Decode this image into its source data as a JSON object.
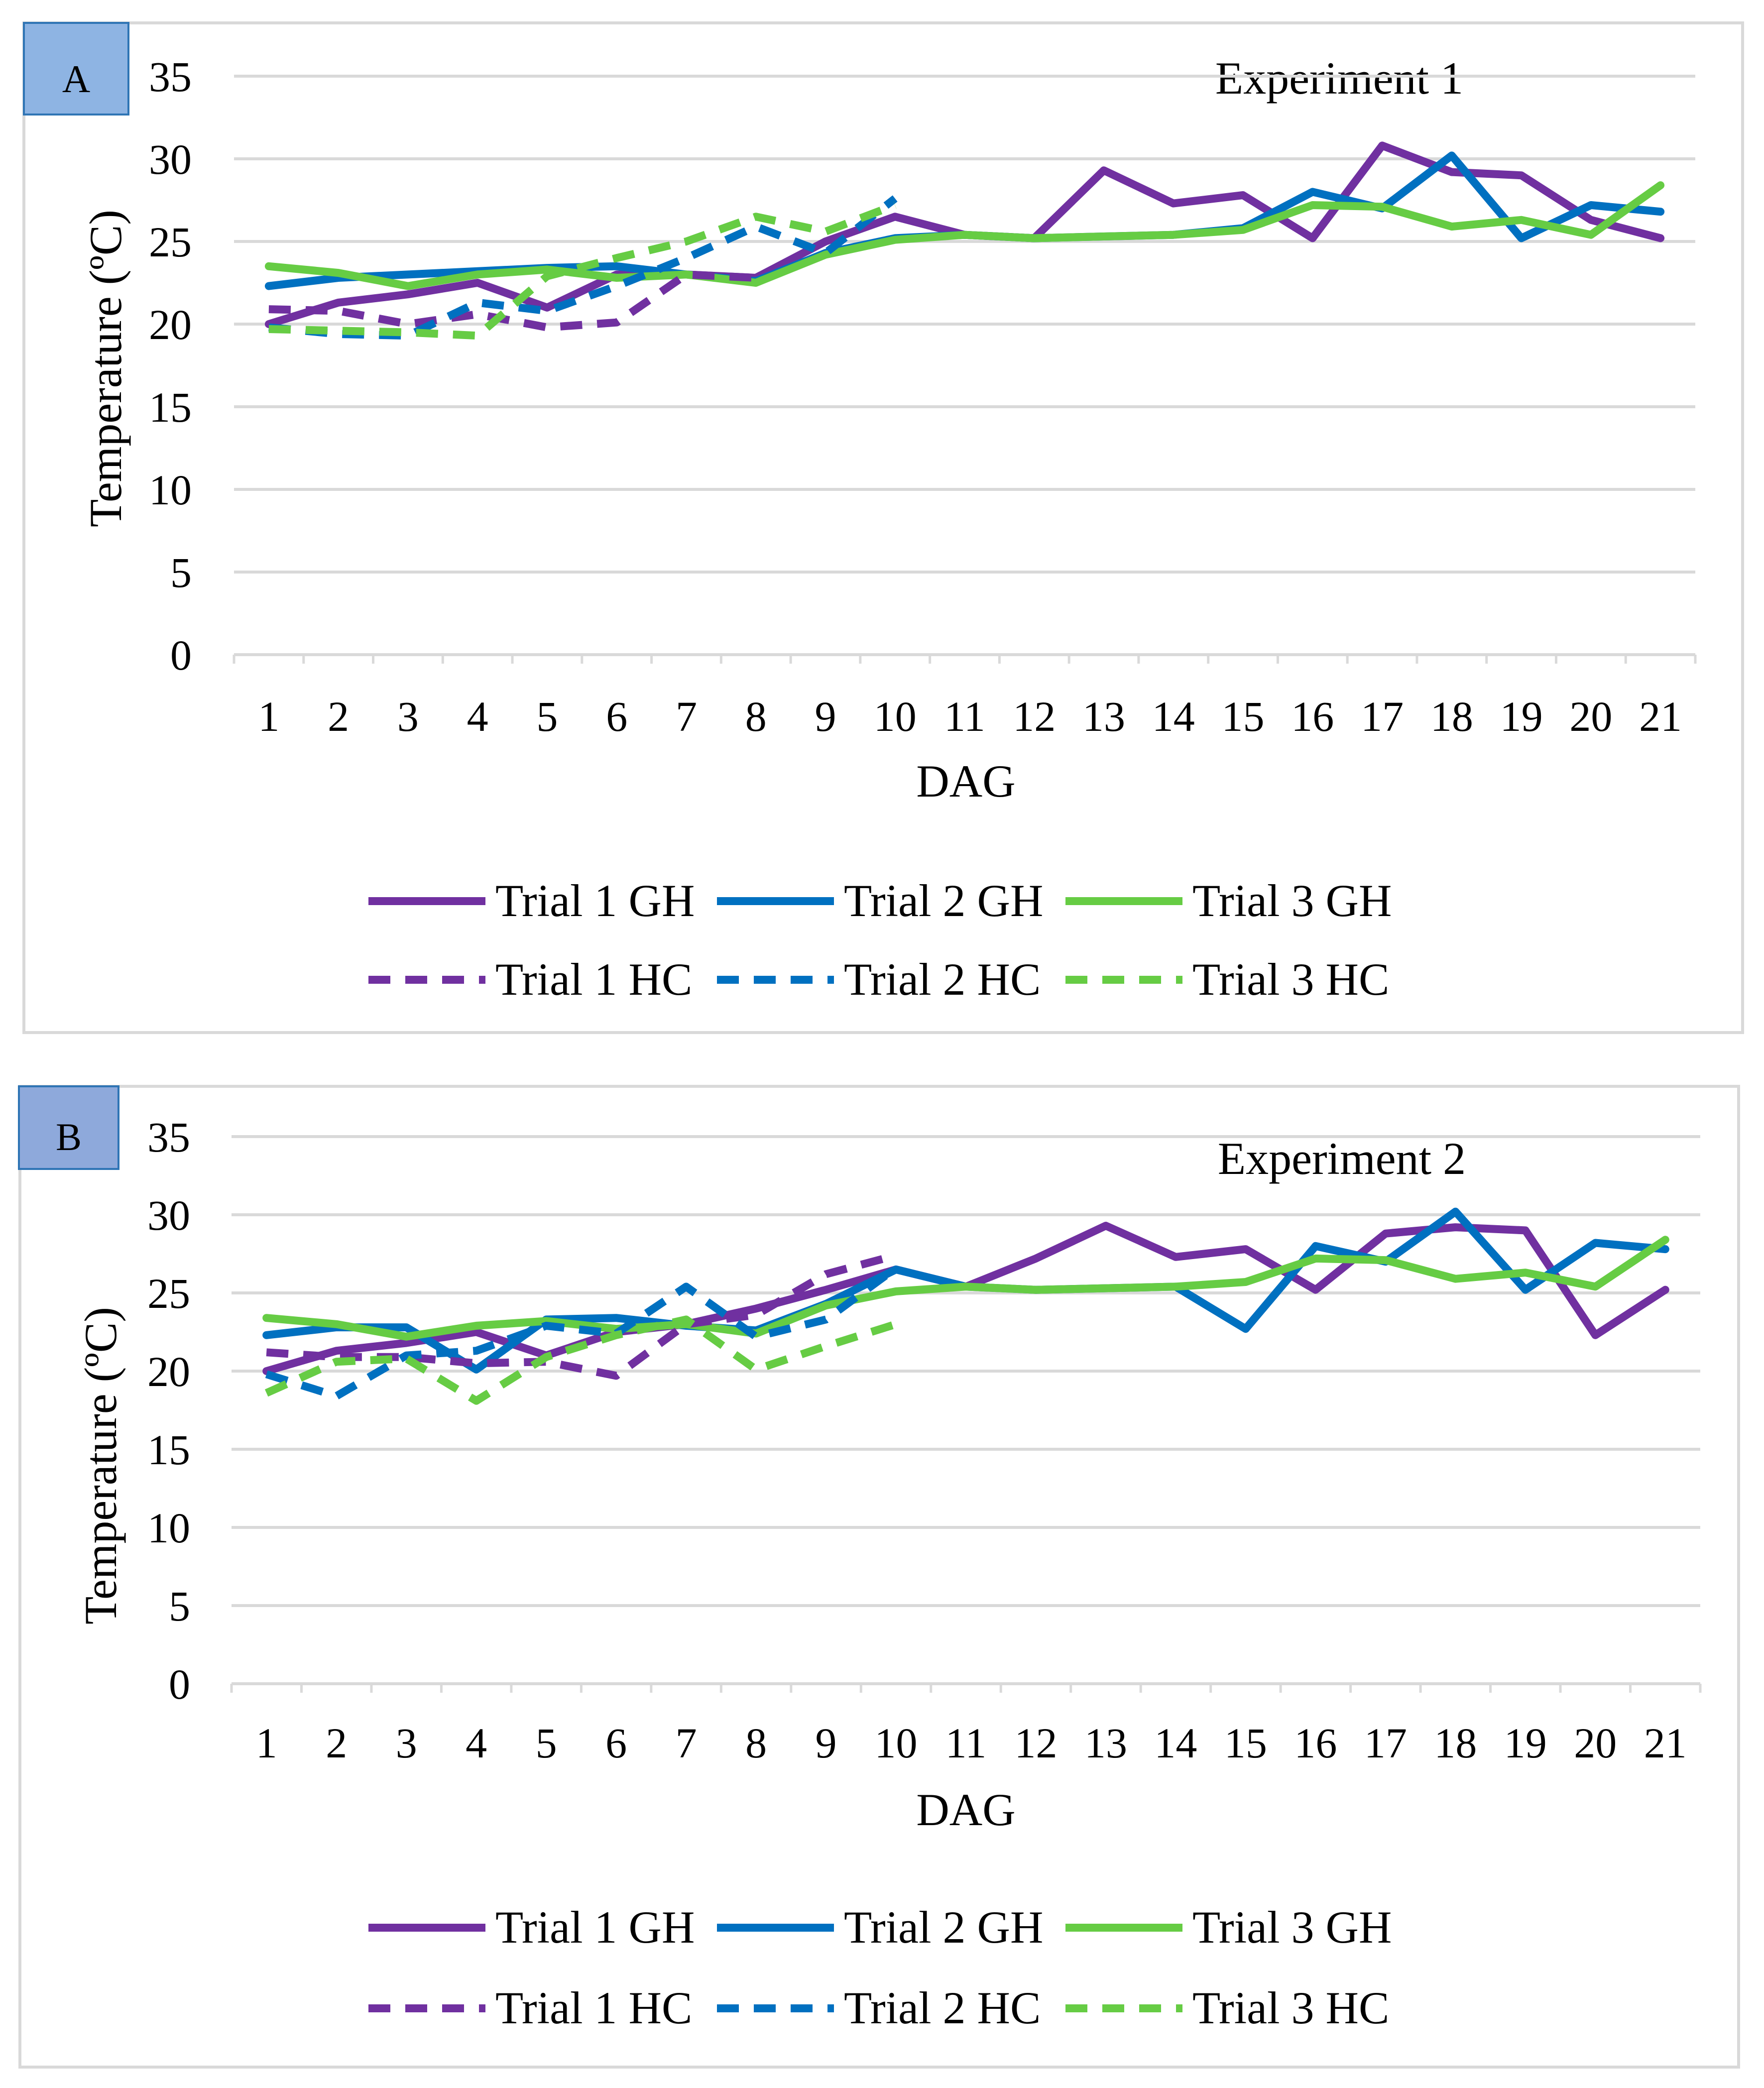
{
  "colors": {
    "trial1": "#7030A0",
    "trial2": "#0070C0",
    "trial3": "#66CC44",
    "grid": "#D9D9D9",
    "frame": "#D9D9D9",
    "panel_label_fill_a": "#8EB4E3",
    "panel_label_fill_b": "#8EA9DB",
    "panel_label_border": "#2F75B5"
  },
  "chart_data": [
    {
      "type": "line",
      "panel_label": "A",
      "title": "Experiment 1",
      "xlabel": "DAG",
      "ylabel": "Temperature (ºC)",
      "ylim": [
        0,
        35
      ],
      "yticks": [
        "0",
        "5",
        "10",
        "15",
        "20",
        "25",
        "30",
        "35"
      ],
      "categories": [
        "1",
        "2",
        "3",
        "4",
        "5",
        "6",
        "7",
        "8",
        "9",
        "10",
        "11",
        "12",
        "13",
        "14",
        "15",
        "16",
        "17",
        "18",
        "19",
        "20",
        "21"
      ],
      "legend_position": "bottom",
      "series": [
        {
          "name": "Trial 1 GH",
          "color_key": "trial1",
          "dashed": false,
          "values": [
            20.0,
            21.3,
            21.8,
            22.5,
            21.0,
            23.0,
            23.0,
            22.8,
            25.0,
            26.5,
            25.4,
            25.2,
            29.3,
            27.3,
            27.8,
            25.2,
            30.8,
            29.2,
            29.0,
            26.3,
            25.2
          ]
        },
        {
          "name": "Trial 2 GH",
          "color_key": "trial2",
          "dashed": false,
          "values": [
            22.3,
            22.8,
            23.0,
            23.2,
            23.4,
            23.5,
            23.0,
            22.6,
            24.3,
            25.2,
            25.4,
            25.2,
            25.3,
            25.4,
            25.8,
            28.0,
            27.0,
            30.2,
            25.2,
            27.2,
            26.8
          ]
        },
        {
          "name": "Trial 3 GH",
          "color_key": "trial3",
          "dashed": false,
          "values": [
            23.5,
            23.1,
            22.3,
            23.0,
            23.3,
            22.8,
            23.0,
            22.5,
            24.2,
            25.1,
            25.4,
            25.2,
            25.3,
            25.4,
            25.7,
            27.2,
            27.1,
            25.9,
            26.3,
            25.4,
            28.4
          ]
        },
        {
          "name": "Trial 1 HC",
          "color_key": "trial1",
          "dashed": true,
          "values": [
            20.9,
            20.8,
            20.0,
            20.6,
            19.8,
            20.1,
            23.0,
            22.8,
            null,
            null,
            null,
            null,
            null,
            null,
            null,
            null,
            null,
            null,
            null,
            null,
            null
          ]
        },
        {
          "name": "Trial 2 HC",
          "color_key": "trial2",
          "dashed": true,
          "values": [
            19.8,
            19.4,
            19.3,
            21.3,
            20.8,
            22.3,
            24.0,
            25.9,
            24.3,
            27.6,
            null,
            null,
            null,
            null,
            null,
            null,
            null,
            null,
            null,
            null,
            null
          ]
        },
        {
          "name": "Trial 3 HC",
          "color_key": "trial3",
          "dashed": true,
          "values": [
            19.7,
            19.6,
            19.5,
            19.3,
            22.9,
            24.0,
            25.0,
            26.5,
            25.6,
            27.2,
            null,
            null,
            null,
            null,
            null,
            null,
            null,
            null,
            null,
            null,
            null
          ]
        }
      ]
    },
    {
      "type": "line",
      "panel_label": "B",
      "title": "Experiment 2",
      "xlabel": "DAG",
      "ylabel": "Temperature (ºC)",
      "ylim": [
        0,
        35
      ],
      "yticks": [
        "0",
        "5",
        "10",
        "15",
        "20",
        "25",
        "30",
        "35"
      ],
      "categories": [
        "1",
        "2",
        "3",
        "4",
        "5",
        "6",
        "7",
        "8",
        "9",
        "10",
        "11",
        "12",
        "13",
        "14",
        "15",
        "16",
        "17",
        "18",
        "19",
        "20",
        "21"
      ],
      "legend_position": "bottom",
      "series": [
        {
          "name": "Trial 1 GH",
          "color_key": "trial1",
          "dashed": false,
          "values": [
            20.0,
            21.3,
            21.8,
            22.5,
            21.0,
            22.5,
            23.0,
            24.0,
            25.2,
            26.5,
            25.4,
            27.2,
            29.3,
            27.3,
            27.8,
            25.2,
            28.8,
            29.2,
            29.0,
            22.3,
            25.2
          ]
        },
        {
          "name": "Trial 2 GH",
          "color_key": "trial2",
          "dashed": false,
          "values": [
            22.3,
            22.8,
            22.8,
            20.1,
            23.3,
            23.4,
            22.9,
            22.6,
            24.3,
            26.5,
            25.4,
            25.2,
            25.3,
            25.4,
            22.7,
            28.0,
            27.0,
            30.2,
            25.2,
            28.2,
            27.8
          ]
        },
        {
          "name": "Trial 3 GH",
          "color_key": "trial3",
          "dashed": false,
          "values": [
            23.4,
            23.0,
            22.2,
            22.9,
            23.2,
            22.7,
            23.0,
            22.4,
            24.2,
            25.1,
            25.4,
            25.2,
            25.3,
            25.4,
            25.7,
            27.2,
            27.1,
            25.9,
            26.3,
            25.4,
            28.4
          ]
        },
        {
          "name": "Trial 1 HC",
          "color_key": "trial1",
          "dashed": true,
          "values": [
            21.2,
            20.9,
            20.9,
            20.5,
            20.6,
            19.7,
            23.0,
            23.6,
            26.2,
            27.4,
            null,
            null,
            null,
            null,
            null,
            null,
            null,
            null,
            null,
            null,
            null
          ]
        },
        {
          "name": "Trial 2 HC",
          "color_key": "trial2",
          "dashed": true,
          "values": [
            19.8,
            18.4,
            21.0,
            21.3,
            22.9,
            22.4,
            25.4,
            22.2,
            23.3,
            26.6,
            null,
            null,
            null,
            null,
            null,
            null,
            null,
            null,
            null,
            null,
            null
          ]
        },
        {
          "name": "Trial 3 HC",
          "color_key": "trial3",
          "dashed": true,
          "values": [
            18.6,
            20.6,
            20.8,
            18.1,
            20.9,
            22.3,
            23.3,
            20.1,
            21.6,
            23.0,
            null,
            null,
            null,
            null,
            null,
            null,
            null,
            null,
            null,
            null,
            null
          ]
        }
      ]
    }
  ]
}
